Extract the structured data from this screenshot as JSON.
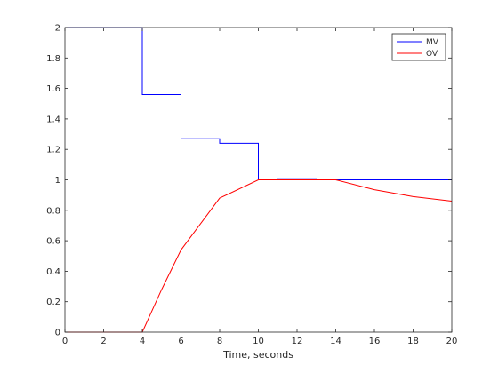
{
  "chart_data": {
    "type": "line",
    "title": "",
    "xlabel": "Time, seconds",
    "ylabel": "",
    "xlim": [
      0,
      20
    ],
    "ylim": [
      0,
      2
    ],
    "xticks": [
      "0",
      "2",
      "4",
      "6",
      "8",
      "10",
      "12",
      "14",
      "16",
      "18",
      "20"
    ],
    "yticks": [
      "0",
      "0.2",
      "0.4",
      "0.6",
      "0.8",
      "1",
      "1.2",
      "1.4",
      "1.6",
      "1.8",
      "2"
    ],
    "grid": false,
    "legend_position": "top-right",
    "series": [
      {
        "name": "MV",
        "style": "step",
        "color": "#0000ff",
        "points": [
          [
            0,
            2
          ],
          [
            4,
            2
          ],
          [
            4,
            1.56
          ],
          [
            6,
            1.56
          ],
          [
            6,
            1.27
          ],
          [
            8,
            1.27
          ],
          [
            8,
            1.24
          ],
          [
            10,
            1.24
          ],
          [
            10,
            1
          ],
          [
            11,
            1
          ],
          [
            11,
            1.007
          ],
          [
            13,
            1.007
          ],
          [
            13,
            1
          ],
          [
            20,
            1
          ]
        ]
      },
      {
        "name": "OV",
        "style": "line",
        "color": "#ff0000",
        "points": [
          [
            0,
            0
          ],
          [
            4,
            0
          ],
          [
            5,
            0.28
          ],
          [
            6,
            0.54
          ],
          [
            8,
            0.88
          ],
          [
            10,
            1
          ],
          [
            12,
            1
          ],
          [
            14,
            1
          ],
          [
            16,
            0.935
          ],
          [
            18,
            0.89
          ],
          [
            20,
            0.86
          ]
        ]
      }
    ]
  }
}
